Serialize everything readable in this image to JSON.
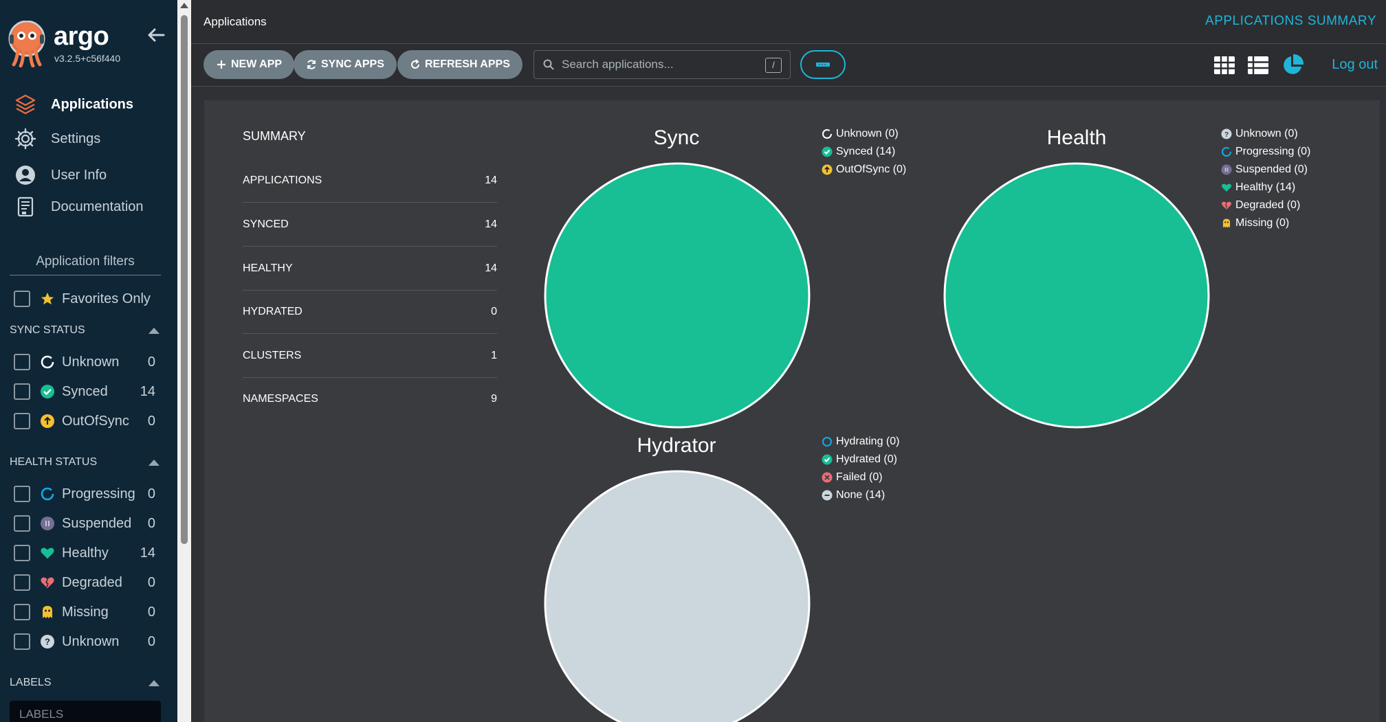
{
  "app": {
    "brand": "argo",
    "version": "v3.2.5+c56f440"
  },
  "nav": [
    {
      "label": "Applications",
      "icon": "layers-icon",
      "active": true
    },
    {
      "label": "Settings",
      "icon": "gear-icon"
    },
    {
      "label": "User Info",
      "icon": "user-icon"
    },
    {
      "label": "Documentation",
      "icon": "book-icon"
    }
  ],
  "filters": {
    "title": "Application filters",
    "favorites_label": "Favorites Only",
    "sync_status": {
      "title": "SYNC STATUS",
      "items": [
        {
          "label": "Unknown",
          "count": "0"
        },
        {
          "label": "Synced",
          "count": "14"
        },
        {
          "label": "OutOfSync",
          "count": "0"
        }
      ]
    },
    "health_status": {
      "title": "HEALTH STATUS",
      "items": [
        {
          "label": "Progressing",
          "count": "0"
        },
        {
          "label": "Suspended",
          "count": "0"
        },
        {
          "label": "Healthy",
          "count": "14"
        },
        {
          "label": "Degraded",
          "count": "0"
        },
        {
          "label": "Missing",
          "count": "0"
        },
        {
          "label": "Unknown",
          "count": "0"
        }
      ]
    },
    "labels": {
      "title": "LABELS",
      "placeholder": "LABELS"
    }
  },
  "topbar": {
    "breadcrumb": "Applications",
    "title_link": "APPLICATIONS SUMMARY"
  },
  "toolbar": {
    "new_app": "NEW APP",
    "sync_apps": "SYNC APPS",
    "refresh_apps": "REFRESH APPS",
    "search_placeholder": "Search applications...",
    "search_shortcut": "/",
    "logout": "Log out"
  },
  "summary": {
    "title": "SUMMARY",
    "rows": [
      {
        "label": "APPLICATIONS",
        "value": "14"
      },
      {
        "label": "SYNCED",
        "value": "14"
      },
      {
        "label": "HEALTHY",
        "value": "14"
      },
      {
        "label": "HYDRATED",
        "value": "0"
      },
      {
        "label": "CLUSTERS",
        "value": "1"
      },
      {
        "label": "NAMESPACES",
        "value": "9"
      }
    ]
  },
  "colors": {
    "sidebar_bg": "#0f2636",
    "accent": "#1fb5d8",
    "synced": "#18be94",
    "out_of_sync": "#f4c030",
    "progressing": "#0dadea",
    "suspended": "#766f94",
    "degraded": "#e96d76",
    "none": "#ccd6dd"
  },
  "chart_data": [
    {
      "type": "pie",
      "title": "Sync",
      "categories": [
        "Unknown",
        "Synced",
        "OutOfSync"
      ],
      "values": [
        0,
        14,
        0
      ],
      "legend": [
        "Unknown (0)",
        "Synced (14)",
        "OutOfSync (0)"
      ],
      "colors": [
        "#ccd6dd",
        "#18be94",
        "#f4c030"
      ],
      "legend_placement": "right"
    },
    {
      "type": "pie",
      "title": "Health",
      "categories": [
        "Unknown",
        "Progressing",
        "Suspended",
        "Healthy",
        "Degraded",
        "Missing"
      ],
      "values": [
        0,
        0,
        0,
        14,
        0,
        0
      ],
      "legend": [
        "Unknown (0)",
        "Progressing (0)",
        "Suspended (0)",
        "Healthy (14)",
        "Degraded (0)",
        "Missing (0)"
      ],
      "colors": [
        "#ccd6dd",
        "#0dadea",
        "#766f94",
        "#18be94",
        "#e96d76",
        "#f4c030"
      ],
      "legend_placement": "right"
    },
    {
      "type": "pie",
      "title": "Hydrator",
      "categories": [
        "Hydrating",
        "Hydrated",
        "Failed",
        "None"
      ],
      "values": [
        0,
        0,
        0,
        14
      ],
      "legend": [
        "Hydrating (0)",
        "Hydrated (0)",
        "Failed (0)",
        "None (14)"
      ],
      "colors": [
        "#0dadea",
        "#18be94",
        "#e96d76",
        "#ccd6dd"
      ],
      "legend_placement": "right"
    }
  ]
}
